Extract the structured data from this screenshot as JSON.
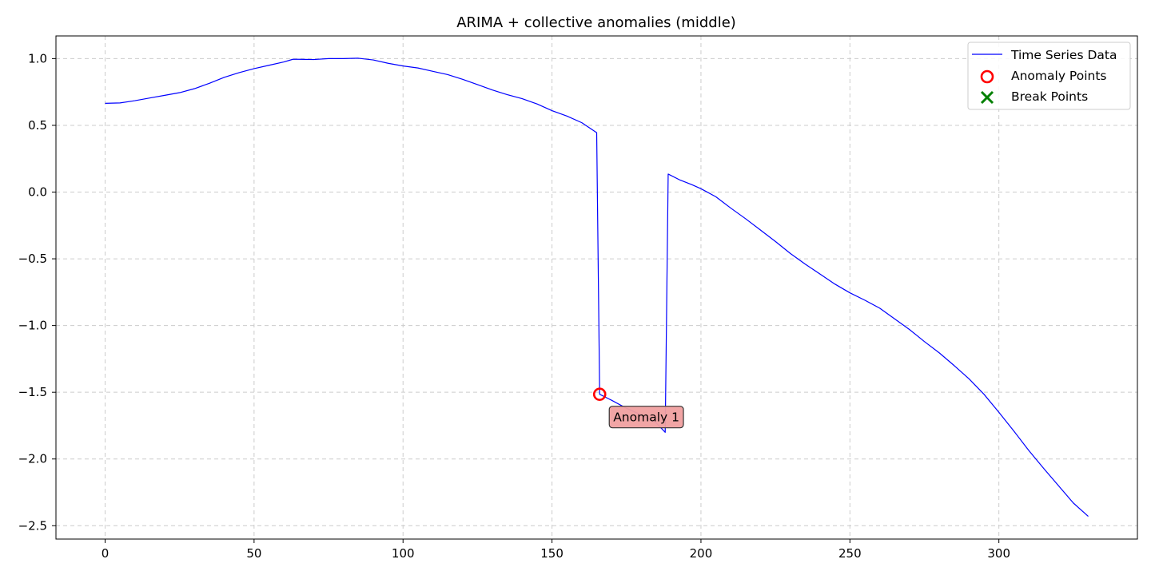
{
  "chart_data": {
    "type": "line",
    "title": "ARIMA + collective anomalies (middle)",
    "xlabel": "",
    "ylabel": "",
    "xlim": [
      -16.5,
      346.5
    ],
    "ylim": [
      -2.6,
      1.17
    ],
    "xticks": [
      0,
      50,
      100,
      150,
      200,
      250,
      300
    ],
    "xtick_labels": [
      "0",
      "50",
      "100",
      "150",
      "200",
      "250",
      "300"
    ],
    "yticks": [
      1.0,
      0.5,
      0.0,
      -0.5,
      -1.0,
      -1.5,
      -2.0,
      -2.5
    ],
    "ytick_labels": [
      "1.0",
      "0.5",
      "0.0",
      "−0.5",
      "−1.0",
      "−1.5",
      "−2.0",
      "−2.5"
    ],
    "grid": true,
    "legend_position": "top-right",
    "series": [
      {
        "name": "Time Series Data",
        "color": "#0000ff",
        "points": [
          [
            0,
            0.665
          ],
          [
            5,
            0.668
          ],
          [
            10,
            0.685
          ],
          [
            15,
            0.705
          ],
          [
            20,
            0.725
          ],
          [
            25,
            0.745
          ],
          [
            30,
            0.775
          ],
          [
            35,
            0.815
          ],
          [
            40,
            0.86
          ],
          [
            45,
            0.895
          ],
          [
            50,
            0.925
          ],
          [
            55,
            0.95
          ],
          [
            60,
            0.975
          ],
          [
            63,
            0.995
          ],
          [
            65,
            0.995
          ],
          [
            70,
            0.993
          ],
          [
            75,
            1.0
          ],
          [
            80,
            1.0
          ],
          [
            85,
            1.003
          ],
          [
            90,
            0.99
          ],
          [
            95,
            0.965
          ],
          [
            100,
            0.945
          ],
          [
            105,
            0.93
          ],
          [
            110,
            0.905
          ],
          [
            115,
            0.88
          ],
          [
            120,
            0.845
          ],
          [
            125,
            0.805
          ],
          [
            130,
            0.765
          ],
          [
            135,
            0.73
          ],
          [
            140,
            0.7
          ],
          [
            145,
            0.66
          ],
          [
            150,
            0.61
          ],
          [
            155,
            0.57
          ],
          [
            160,
            0.52
          ],
          [
            165,
            0.445
          ],
          [
            166,
            -1.515
          ],
          [
            170,
            -1.56
          ],
          [
            175,
            -1.62
          ],
          [
            180,
            -1.67
          ],
          [
            185,
            -1.73
          ],
          [
            188,
            -1.8
          ],
          [
            189,
            0.135
          ],
          [
            193,
            0.09
          ],
          [
            197,
            0.055
          ],
          [
            200,
            0.025
          ],
          [
            205,
            -0.035
          ],
          [
            210,
            -0.12
          ],
          [
            215,
            -0.2
          ],
          [
            220,
            -0.285
          ],
          [
            225,
            -0.37
          ],
          [
            230,
            -0.46
          ],
          [
            235,
            -0.54
          ],
          [
            240,
            -0.615
          ],
          [
            245,
            -0.69
          ],
          [
            250,
            -0.755
          ],
          [
            255,
            -0.81
          ],
          [
            260,
            -0.87
          ],
          [
            265,
            -0.95
          ],
          [
            270,
            -1.03
          ],
          [
            275,
            -1.12
          ],
          [
            280,
            -1.205
          ],
          [
            285,
            -1.3
          ],
          [
            290,
            -1.4
          ],
          [
            295,
            -1.515
          ],
          [
            300,
            -1.65
          ],
          [
            305,
            -1.79
          ],
          [
            310,
            -1.935
          ],
          [
            315,
            -2.07
          ],
          [
            320,
            -2.2
          ],
          [
            325,
            -2.33
          ],
          [
            330,
            -2.43
          ]
        ]
      }
    ],
    "anomaly_points": {
      "name": "Anomaly Points",
      "color": "#ff0000",
      "points": [
        [
          166,
          -1.515
        ]
      ]
    },
    "break_points": {
      "name": "Break Points",
      "color": "#008000",
      "points": []
    },
    "annotations": [
      {
        "text": "Anomaly 1",
        "x": 166,
        "y": -1.515,
        "box_color": "#f0a0a0"
      }
    ]
  }
}
